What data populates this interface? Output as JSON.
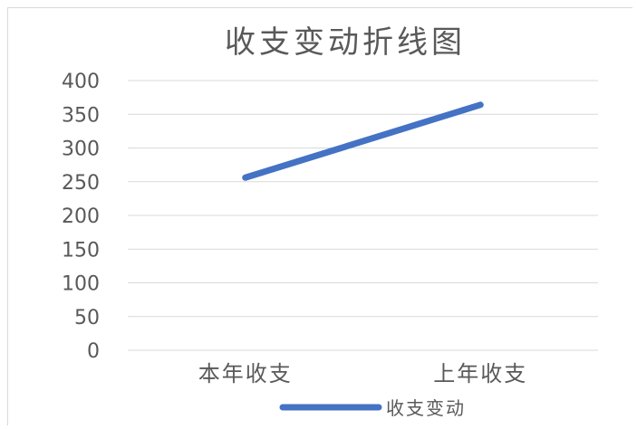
{
  "chart_data": {
    "type": "line",
    "title": "收支变动折线图",
    "categories": [
      "本年收支",
      "上年收支"
    ],
    "series": [
      {
        "name": "收支变动",
        "values": [
          256,
          364
        ],
        "color": "#4472C4"
      }
    ],
    "ylim": [
      0,
      400
    ],
    "yticks": [
      0,
      50,
      100,
      150,
      200,
      250,
      300,
      350,
      400
    ],
    "grid": true,
    "legend": "bottom"
  }
}
